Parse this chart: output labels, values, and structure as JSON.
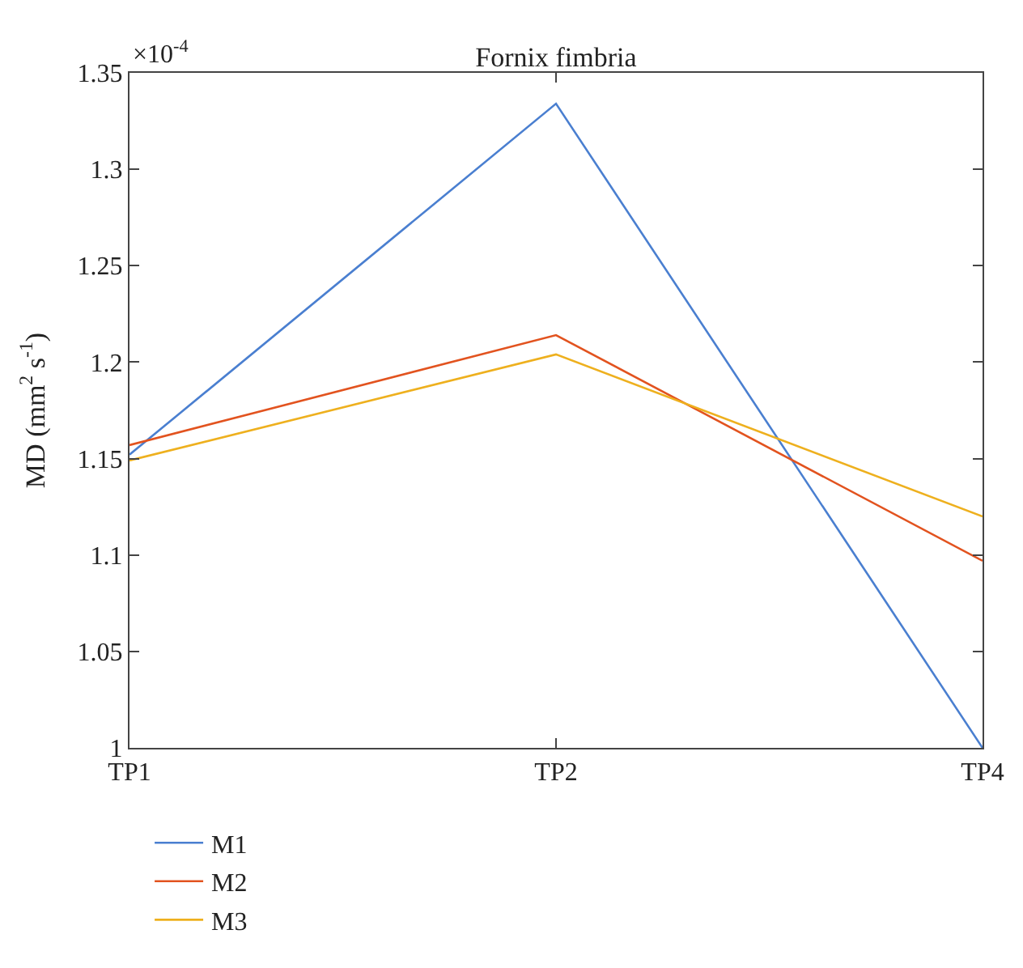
{
  "chart_data": {
    "type": "line",
    "title": "Fornix fimbria",
    "ylabel": "MD (mm$^{2}$ s$^{-1}$)",
    "annotations": [
      "×10$^{-4}$"
    ],
    "categories": [
      "TP1",
      "TP2",
      "TP4"
    ],
    "series": [
      {
        "name": "M1",
        "color": "#4a7fd0",
        "values": [
          1.152,
          1.334,
          1.0
        ]
      },
      {
        "name": "M2",
        "color": "#e2531f",
        "values": [
          1.157,
          1.214,
          1.097
        ]
      },
      {
        "name": "M3",
        "color": "#eeb01e",
        "values": [
          1.149,
          1.204,
          1.12
        ]
      }
    ],
    "ylim": [
      1,
      1.35
    ],
    "yticks": [
      1,
      1.05,
      1.1,
      1.15,
      1.2,
      1.25,
      1.3,
      1.35
    ],
    "legend": "bottom left",
    "marker": "none",
    "line_style": "solid"
  }
}
